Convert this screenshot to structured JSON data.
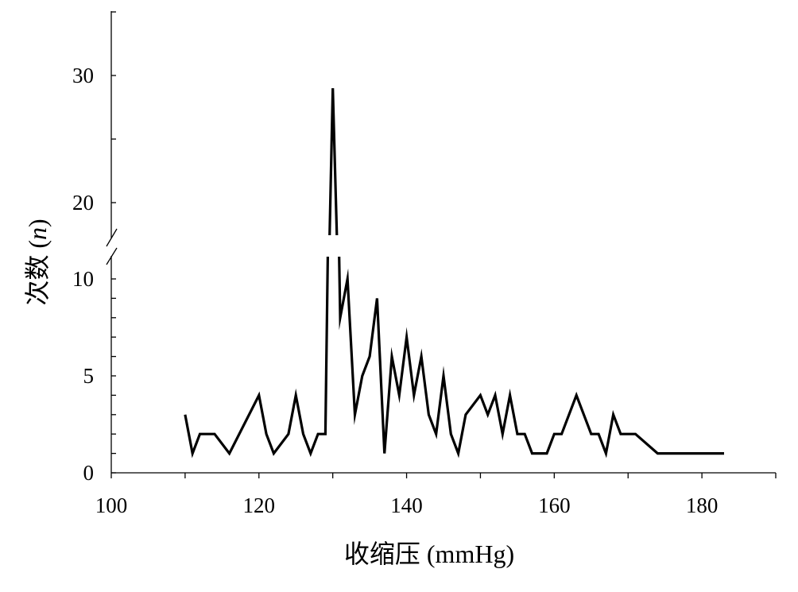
{
  "chart_data": {
    "type": "line",
    "title": "",
    "xlabel": "收缩压 (mmHg)",
    "ylabel_text": "次数 (",
    "ylabel_var": "n",
    "ylabel_close": ")",
    "x_ticks": [
      "100",
      "120",
      "140",
      "160",
      "180"
    ],
    "y_ticks_lower": [
      "0",
      "5",
      "10"
    ],
    "y_ticks_upper": [
      "20",
      "30"
    ],
    "xlim": [
      100,
      190
    ],
    "ylim_lower": [
      0,
      11
    ],
    "ylim_upper": [
      17,
      35
    ],
    "axis_break": true,
    "line_color": "#000000",
    "series": [
      {
        "x": [
          110,
          111,
          112,
          113,
          114,
          116,
          120,
          121,
          122,
          124,
          125,
          126,
          127,
          128,
          129,
          130,
          131,
          132,
          133,
          134,
          135,
          136,
          137,
          138,
          139,
          140,
          141,
          142,
          143,
          144,
          145,
          146,
          147,
          148,
          150,
          151,
          152,
          153,
          154,
          155,
          156,
          157,
          159,
          160,
          161,
          163,
          165,
          166,
          167,
          168,
          169,
          170,
          171,
          174,
          175,
          183
        ],
        "y": [
          3,
          1,
          2,
          2,
          2,
          1,
          4,
          2,
          1,
          2,
          4,
          2,
          1,
          2,
          2,
          29,
          8,
          10,
          3,
          5,
          6,
          9,
          1,
          6,
          4,
          7,
          4,
          6,
          3,
          2,
          5,
          2,
          1,
          3,
          4,
          3,
          4,
          2,
          4,
          2,
          2,
          1,
          1,
          2,
          2,
          4,
          2,
          2,
          1,
          3,
          2,
          2,
          2,
          1,
          1,
          1
        ]
      }
    ]
  }
}
